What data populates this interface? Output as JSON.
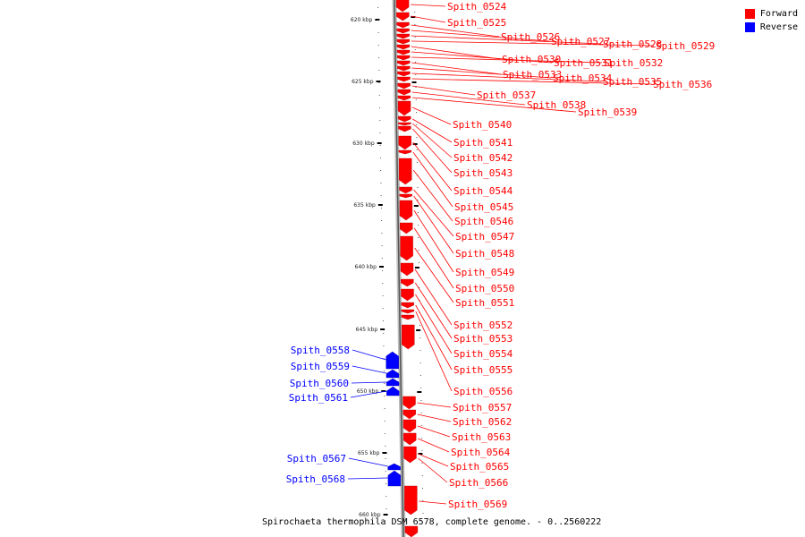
{
  "legend": {
    "forward_label": "Forward",
    "reverse_label": "Reverse",
    "forward_color": "#ff0000",
    "reverse_color": "#0000ff"
  },
  "caption": "Spirochaeta thermophila DSM 6578, complete genome. - 0..2560222",
  "scale_ticks": [
    "620 kbp",
    "625 kbp",
    "630 kbp",
    "635 kbp",
    "640 kbp",
    "645 kbp",
    "650 kbp",
    "655 kbp",
    "660 kbp"
  ],
  "forward_genes": [
    "Spith_0524",
    "Spith_0525",
    "Spith_0526",
    "Spith_0527",
    "Spith_0528",
    "Spith_0529",
    "Spith_0530",
    "Spith_0531",
    "Spith_0532",
    "Spith_0533",
    "Spith_0534",
    "Spith_0535",
    "Spith_0536",
    "Spith_0537",
    "Spith_0538",
    "Spith_0539",
    "Spith_0540",
    "Spith_0541",
    "Spith_0542",
    "Spith_0543",
    "Spith_0544",
    "Spith_0545",
    "Spith_0546",
    "Spith_0547",
    "Spith_0548",
    "Spith_0549",
    "Spith_0550",
    "Spith_0551",
    "Spith_0552",
    "Spith_0553",
    "Spith_0554",
    "Spith_0555",
    "Spith_0556",
    "Spith_0557",
    "Spith_0562",
    "Spith_0563",
    "Spith_0564",
    "Spith_0565",
    "Spith_0566",
    "Spith_0569"
  ],
  "reverse_genes": [
    "Spith_0558",
    "Spith_0559",
    "Spith_0560",
    "Spith_0561",
    "Spith_0567",
    "Spith_0568"
  ]
}
